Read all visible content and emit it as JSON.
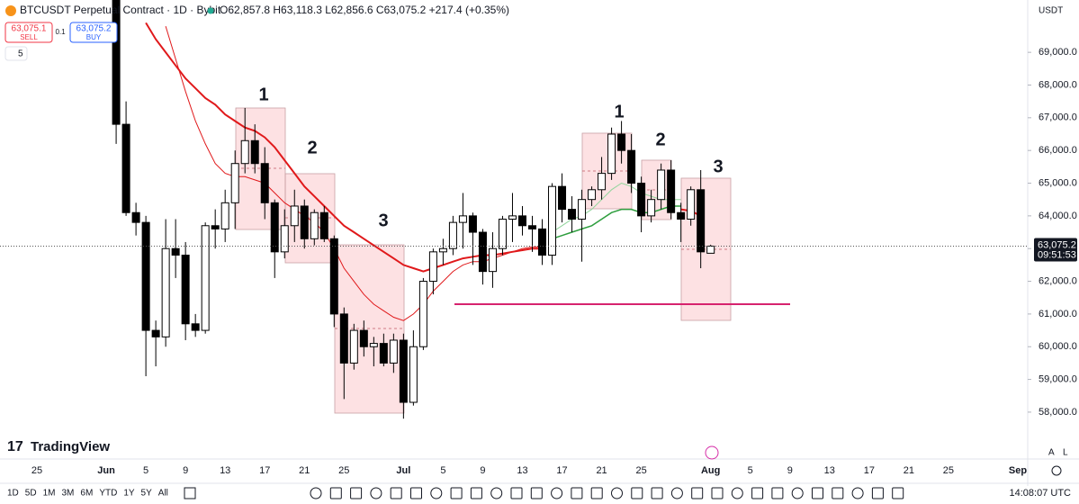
{
  "header": {
    "symbol": "BTCUSDT Perpetual Contract · 1D · Bybit",
    "ohlc": "O62,857.8 H63,118.3 L62,856.6 C63,075.2 +217.4 (+0.35%)",
    "sell_price": "63,075.1",
    "sell": "SELL",
    "spread": "0.1",
    "buy_price": "63,075.2",
    "buy": "BUY",
    "indicators": "5",
    "currency": "USDT"
  },
  "chart_data": {
    "type": "candlestick",
    "categories": [
      "25",
      null,
      null,
      null,
      null,
      null,
      null,
      "Jun",
      null,
      null,
      null,
      "5",
      null,
      null,
      null,
      "9",
      null,
      null,
      null,
      "13",
      null,
      null,
      null,
      "17",
      null,
      null,
      null,
      "21",
      null,
      null,
      null,
      "25",
      null,
      null,
      null,
      null,
      null,
      "Jul",
      null,
      null,
      null,
      "5",
      null,
      null,
      null,
      "9",
      null,
      null,
      null,
      "13",
      null,
      null,
      null,
      "17",
      null,
      null,
      null,
      "21",
      null,
      null,
      null,
      "25",
      null,
      null,
      null,
      null,
      null,
      null,
      "Aug",
      null,
      null,
      null,
      "5",
      null,
      null,
      null,
      "9",
      null,
      null,
      null,
      "13",
      null,
      null,
      null,
      "17",
      null,
      null,
      null,
      "21",
      null,
      null,
      null,
      "25",
      null,
      null,
      null,
      null,
      null,
      null,
      "Sep"
    ],
    "open": [
      null,
      null,
      null,
      null,
      null,
      null,
      null,
      null,
      70800,
      66800,
      64100,
      63800,
      60500,
      60300,
      63000,
      62800,
      60700,
      60500,
      63700,
      63600,
      64400,
      65600,
      66300,
      65600,
      64400,
      62900,
      63700,
      64300,
      63300,
      64100,
      63300,
      61000,
      59500,
      60500,
      60000,
      60100,
      59500,
      60200,
      58300,
      60000,
      62000,
      62900,
      63000,
      63800,
      64000,
      63500,
      62300,
      63000,
      63900,
      64000,
      63700,
      63600,
      62800,
      64900,
      64200,
      63900,
      64500,
      64800,
      65300,
      66500,
      66000,
      65000,
      64000,
      64500,
      65400,
      64100,
      63900,
      64800,
      62857.8,
      null,
      null,
      null,
      null,
      null,
      null,
      null,
      null,
      null,
      null,
      null,
      null,
      null,
      null,
      null,
      null,
      null,
      null,
      null,
      null,
      null,
      null,
      null,
      null,
      null,
      null,
      null,
      null,
      null,
      null,
      null
    ],
    "high": [
      null,
      null,
      null,
      null,
      null,
      null,
      null,
      null,
      71500,
      67500,
      64400,
      64000,
      60800,
      63900,
      63900,
      63200,
      61000,
      63800,
      64200,
      64800,
      66000,
      67300,
      66800,
      66100,
      64500,
      64200,
      64800,
      64500,
      64200,
      64300,
      63400,
      61200,
      60700,
      60800,
      60300,
      60400,
      60400,
      60400,
      60500,
      62100,
      63000,
      63300,
      64000,
      64700,
      64100,
      63600,
      63500,
      64000,
      64700,
      64300,
      64000,
      63900,
      65000,
      65300,
      64600,
      64800,
      64900,
      65800,
      66700,
      66900,
      66500,
      65200,
      64800,
      65600,
      65700,
      64400,
      64900,
      65400,
      63118.3,
      null,
      null,
      null,
      null,
      null,
      null,
      null,
      null,
      null,
      null,
      null,
      null,
      null,
      null,
      null,
      null,
      null,
      null,
      null,
      null,
      null,
      null,
      null,
      null,
      null,
      null,
      null,
      null,
      null,
      null,
      null
    ],
    "low": [
      null,
      null,
      null,
      null,
      null,
      null,
      null,
      null,
      66200,
      64000,
      63400,
      59100,
      59400,
      60000,
      62100,
      60200,
      60300,
      60400,
      63000,
      63200,
      63600,
      65300,
      65300,
      63900,
      62100,
      62700,
      63200,
      63000,
      63100,
      63200,
      60600,
      58400,
      59300,
      59700,
      59400,
      59400,
      59200,
      57800,
      58200,
      59900,
      61600,
      62500,
      62800,
      63000,
      62500,
      61900,
      61800,
      62800,
      63200,
      63400,
      62900,
      62500,
      62500,
      63800,
      63500,
      62600,
      64300,
      64500,
      65100,
      65600,
      64700,
      63500,
      63800,
      64200,
      63900,
      63200,
      63700,
      62400,
      62856.6,
      null,
      null,
      null,
      null,
      null,
      null,
      null,
      null,
      null,
      null,
      null,
      null,
      null,
      null,
      null,
      null,
      null,
      null,
      null,
      null,
      null,
      null,
      null,
      null,
      null,
      null,
      null,
      null,
      null,
      null,
      null
    ],
    "close": [
      null,
      null,
      null,
      null,
      null,
      null,
      null,
      null,
      66800,
      64100,
      63800,
      60500,
      60300,
      63000,
      62800,
      60700,
      60500,
      63700,
      63600,
      64400,
      65600,
      66300,
      65600,
      64400,
      62900,
      63700,
      64300,
      63300,
      64100,
      63300,
      61000,
      59500,
      60500,
      60000,
      60100,
      59500,
      60200,
      58300,
      60000,
      62000,
      62900,
      63000,
      63800,
      64000,
      63500,
      62300,
      63000,
      63900,
      64000,
      63700,
      63600,
      62800,
      64900,
      64200,
      63900,
      64500,
      64800,
      65300,
      66500,
      66000,
      65000,
      64000,
      64500,
      65400,
      64100,
      63900,
      64800,
      62900,
      63075.2,
      null,
      null,
      null,
      null,
      null,
      null,
      null,
      null,
      null,
      null,
      null,
      null,
      null,
      null,
      null,
      null,
      null,
      null,
      null,
      null,
      null,
      null,
      null,
      null,
      null,
      null,
      null,
      null,
      null,
      null,
      null
    ],
    "up_color": "#ffffff",
    "down_color": "#000000",
    "lines": [
      {
        "color": "#e0191b",
        "width": 2,
        "values": [
          null,
          null,
          null,
          null,
          null,
          null,
          null,
          null,
          null,
          null,
          null,
          69900,
          69400,
          69000,
          68600,
          68200,
          67900,
          67600,
          67400,
          67100,
          66900,
          66700,
          66600,
          66400,
          66100,
          65700,
          65300,
          64900,
          64600,
          64300,
          64000,
          63700,
          63500,
          63300,
          63100,
          62900,
          62700,
          62500,
          62400,
          62300,
          62400,
          62500,
          62600,
          62700,
          62750,
          62800,
          62800,
          62850,
          62900,
          62950,
          63000,
          63000,
          null,
          null,
          null,
          null,
          null,
          null,
          null,
          null,
          null,
          null,
          null,
          null,
          null,
          64200,
          64150,
          64000,
          null,
          null,
          null,
          null,
          null,
          null,
          null,
          null,
          null,
          null,
          null,
          null,
          null,
          null,
          null,
          null,
          null,
          null,
          null,
          null,
          null,
          null,
          null,
          null,
          null,
          null,
          null,
          null,
          null,
          null,
          null,
          null
        ]
      },
      {
        "color": "#e0191b",
        "width": 1,
        "values": [
          null,
          null,
          null,
          null,
          null,
          null,
          null,
          null,
          null,
          null,
          null,
          null,
          null,
          69800,
          68800,
          67800,
          66900,
          66200,
          65600,
          65300,
          65200,
          65200,
          65100,
          65000,
          64700,
          64400,
          64200,
          64000,
          63800,
          63500,
          63000,
          62400,
          62000,
          61600,
          61300,
          61100,
          60900,
          60800,
          61000,
          61300,
          61700,
          62000,
          62300,
          62500,
          62600,
          62600,
          62700,
          62800,
          62900,
          63000,
          63050,
          63050,
          null,
          null,
          null,
          null,
          null,
          null,
          null,
          null,
          null,
          null,
          null,
          null,
          null,
          null,
          null,
          null,
          null,
          null,
          null,
          null,
          null,
          null,
          null,
          null,
          null,
          null,
          null,
          null,
          null,
          null,
          null,
          null,
          null,
          null,
          null,
          null,
          null,
          null,
          null,
          null,
          null,
          null,
          null,
          null,
          null,
          null,
          null,
          null
        ]
      },
      {
        "color": "#2e9e3e",
        "width": 1.5,
        "values": [
          null,
          null,
          null,
          null,
          null,
          null,
          null,
          null,
          null,
          null,
          null,
          null,
          null,
          null,
          null,
          null,
          null,
          null,
          null,
          null,
          null,
          null,
          null,
          null,
          null,
          null,
          null,
          null,
          null,
          null,
          null,
          null,
          null,
          null,
          null,
          null,
          null,
          null,
          null,
          null,
          null,
          null,
          null,
          null,
          null,
          null,
          null,
          null,
          null,
          null,
          null,
          null,
          63300,
          63400,
          63500,
          63600,
          63700,
          63900,
          64100,
          64200,
          64200,
          64100,
          64100,
          64200,
          64300,
          64300,
          null,
          null,
          null,
          null,
          null,
          null,
          null,
          null,
          null,
          null,
          null,
          null,
          null,
          null,
          null,
          null,
          null,
          null,
          null,
          null,
          null,
          null,
          null,
          null,
          null,
          null,
          null,
          null,
          null,
          null,
          null,
          null,
          null,
          null
        ]
      },
      {
        "color": "#8fd49a",
        "width": 1,
        "values": [
          null,
          null,
          null,
          null,
          null,
          null,
          null,
          null,
          null,
          null,
          null,
          null,
          null,
          null,
          null,
          null,
          null,
          null,
          null,
          null,
          null,
          null,
          null,
          null,
          null,
          null,
          null,
          null,
          null,
          null,
          null,
          null,
          null,
          null,
          null,
          null,
          null,
          null,
          null,
          null,
          null,
          null,
          null,
          null,
          null,
          null,
          null,
          null,
          null,
          null,
          null,
          null,
          63500,
          63700,
          63900,
          64000,
          64200,
          64500,
          64800,
          65000,
          64900,
          64700,
          64600,
          64500,
          64500,
          64500,
          null,
          null,
          null,
          null,
          null,
          null,
          null,
          null,
          null,
          null,
          null,
          null,
          null,
          null,
          null,
          null,
          null,
          null,
          null,
          null,
          null,
          null,
          null,
          null,
          null,
          null,
          null,
          null,
          null,
          null,
          null,
          null,
          null,
          null
        ]
      }
    ],
    "ylim": [
      57200,
      70600
    ],
    "yticks": [
      {
        "value": 58000,
        "label": "58,000.0"
      },
      {
        "value": 59000,
        "label": "59,000.0"
      },
      {
        "value": 60000,
        "label": "60,000.0"
      },
      {
        "value": 61000,
        "label": "61,000.0"
      },
      {
        "value": 62000,
        "label": "62,000.0"
      },
      {
        "value": 63000,
        "label": "63,000.0"
      },
      {
        "value": 64000,
        "label": "64,000.0"
      },
      {
        "value": 65000,
        "label": "65,000.0"
      },
      {
        "value": 66000,
        "label": "66,000.0"
      },
      {
        "value": 67000,
        "label": "67,000.0"
      },
      {
        "value": 68000,
        "label": "68,000.0"
      },
      {
        "value": 69000,
        "label": "69,000.0"
      }
    ],
    "annotations": [
      "1",
      "2",
      "3",
      "1",
      "2",
      "3"
    ],
    "last_price_label": "63,075.2",
    "countdown": "09:51:53"
  },
  "footer": {
    "logo": "TradingView",
    "timeframes": [
      "1D",
      "5D",
      "1M",
      "3M",
      "6M",
      "YTD",
      "1Y",
      "5Y",
      "All"
    ],
    "time": "14:08:07 UTC",
    "scale_auto": "A",
    "scale_log": "L"
  }
}
